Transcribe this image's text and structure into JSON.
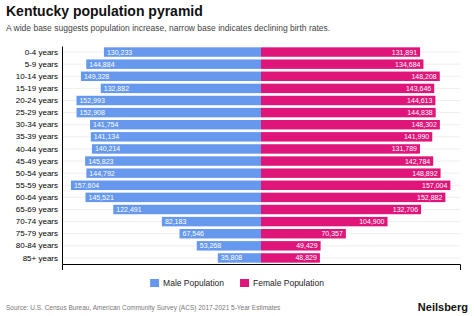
{
  "chart_data": {
    "type": "bar",
    "orientation": "horizontal",
    "title": "Kentucky population pyramid",
    "subtitle": "A wide base suggests population increase, narrow base indicates declining birth rates.",
    "categories": [
      "0-4 years",
      "5-9 years",
      "10-14 years",
      "15-19 years",
      "20-24 years",
      "25-29 years",
      "30-34 years",
      "35-39 years",
      "40-44 years",
      "45-49 years",
      "50-54 years",
      "55-59 years",
      "60-64 years",
      "65-69 years",
      "70-74 years",
      "75-79 years",
      "80-84 years",
      "85+ years"
    ],
    "series": [
      {
        "name": "Male Population",
        "color": "#6699EE",
        "values": [
          130233,
          144884,
          149328,
          132882,
          152993,
          152908,
          141754,
          141134,
          140214,
          145823,
          144792,
          157604,
          145521,
          122491,
          82183,
          67546,
          53268,
          35808
        ],
        "value_labels": [
          "130,233",
          "144,884",
          "149,328",
          "132,882",
          "152,993",
          "152,908",
          "141,754",
          "141,134",
          "140,214",
          "145,823",
          "144,792",
          "157,604",
          "145,521",
          "122,491",
          "82,183",
          "67,546",
          "53,268",
          "35,808"
        ]
      },
      {
        "name": "Female Population",
        "color": "#E0157A",
        "values": [
          131891,
          134684,
          148208,
          143646,
          144613,
          144838,
          148302,
          141990,
          131789,
          142784,
          148892,
          157004,
          152882,
          132706,
          104900,
          70357,
          49429,
          48829
        ],
        "value_labels": [
          "131,891",
          "134,684",
          "148,208",
          "143,646",
          "144,613",
          "144,838",
          "148,302",
          "141,990",
          "131,789",
          "142,784",
          "148,892",
          "157,004",
          "152,882",
          "132,706",
          "104,900",
          "70,357",
          "49,429",
          "48,829"
        ]
      }
    ],
    "xlim": [
      -165000,
      165000
    ],
    "xticks": [],
    "tick_labels": "y",
    "grid": true,
    "data_labels": true,
    "legend": "bottom",
    "annotations": [
      {
        "text": "Source: U.S. Census Bureau, American Community Survey (ACS) 2017-2021 5-Year Estimates"
      },
      {
        "text": "Neilsberg"
      }
    ]
  }
}
